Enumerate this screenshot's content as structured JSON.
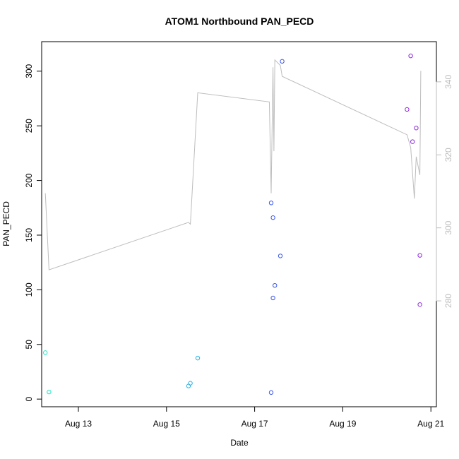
{
  "chart_data": {
    "type": "scatter",
    "title": "ATOM1 Northbound PAN_PECD",
    "xlabel": "Date",
    "ylabel": "PAN_PECD",
    "xlim": [
      "2024-08-12T04:00",
      "2024-08-21T03:00"
    ],
    "ylim": [
      -7,
      327
    ],
    "x_ticks": [
      {
        "at": "2024-08-13",
        "label": "Aug 13"
      },
      {
        "at": "2024-08-15",
        "label": "Aug 15"
      },
      {
        "at": "2024-08-17",
        "label": "Aug 17"
      },
      {
        "at": "2024-08-19",
        "label": "Aug 19"
      },
      {
        "at": "2024-08-21",
        "label": "Aug 21"
      }
    ],
    "y_ticks": [
      0,
      50,
      100,
      150,
      200,
      250,
      300
    ],
    "y2_ticks": [
      280,
      300,
      320,
      340
    ],
    "y2lim": [
      251,
      351
    ],
    "grid": false,
    "series": [
      {
        "color": "#1ee8c8",
        "points": [
          {
            "x": "2024-08-12T06:00",
            "y": 42.5
          },
          {
            "x": "2024-08-12T08:00",
            "y": 6.5
          }
        ]
      },
      {
        "color": "#27b3e6",
        "points": [
          {
            "x": "2024-08-15T12:00",
            "y": 12
          },
          {
            "x": "2024-08-15T13:00",
            "y": 14.5
          },
          {
            "x": "2024-08-15T17:00",
            "y": 37.5
          }
        ]
      },
      {
        "color": "#3a55e8",
        "points": [
          {
            "x": "2024-08-17T09:00",
            "y": 179.5
          },
          {
            "x": "2024-08-17T09:00",
            "y": 6
          },
          {
            "x": "2024-08-17T10:00",
            "y": 166
          },
          {
            "x": "2024-08-17T10:00",
            "y": 92.5
          },
          {
            "x": "2024-08-17T11:00",
            "y": 104
          },
          {
            "x": "2024-08-17T14:00",
            "y": 131
          },
          {
            "x": "2024-08-17T15:00",
            "y": 309
          }
        ]
      },
      {
        "color": "#8a2be2",
        "points": [
          {
            "x": "2024-08-20T11:00",
            "y": 265
          },
          {
            "x": "2024-08-20T13:00",
            "y": 314
          },
          {
            "x": "2024-08-20T14:00",
            "y": 235.5
          },
          {
            "x": "2024-08-20T16:00",
            "y": 248
          },
          {
            "x": "2024-08-20T18:00",
            "y": 131.5
          },
          {
            "x": "2024-08-20T18:00",
            "y": 86.5
          }
        ]
      }
    ],
    "line_series": {
      "axis": "right",
      "color": "#bdbdbd",
      "points": [
        {
          "x": "2024-08-12T06:00",
          "y": 309.5
        },
        {
          "x": "2024-08-12T08:00",
          "y": 288.5
        },
        {
          "x": "2024-08-15T12:00",
          "y": 301.5
        },
        {
          "x": "2024-08-15T13:00",
          "y": 301
        },
        {
          "x": "2024-08-15T17:00",
          "y": 337
        },
        {
          "x": "2024-08-17T08:00",
          "y": 334.5
        },
        {
          "x": "2024-08-17T09:00",
          "y": 309.5
        },
        {
          "x": "2024-08-17T10:00",
          "y": 344
        },
        {
          "x": "2024-08-17T10:30",
          "y": 321
        },
        {
          "x": "2024-08-17T11:00",
          "y": 346
        },
        {
          "x": "2024-08-17T14:00",
          "y": 344.5
        },
        {
          "x": "2024-08-17T15:00",
          "y": 341.5
        },
        {
          "x": "2024-08-20T11:00",
          "y": 325.5
        },
        {
          "x": "2024-08-20T13:00",
          "y": 322
        },
        {
          "x": "2024-08-20T15:00",
          "y": 308
        },
        {
          "x": "2024-08-20T16:00",
          "y": 319.5
        },
        {
          "x": "2024-08-20T18:00",
          "y": 314.5
        },
        {
          "x": "2024-08-20T18:30",
          "y": 343
        }
      ]
    }
  }
}
